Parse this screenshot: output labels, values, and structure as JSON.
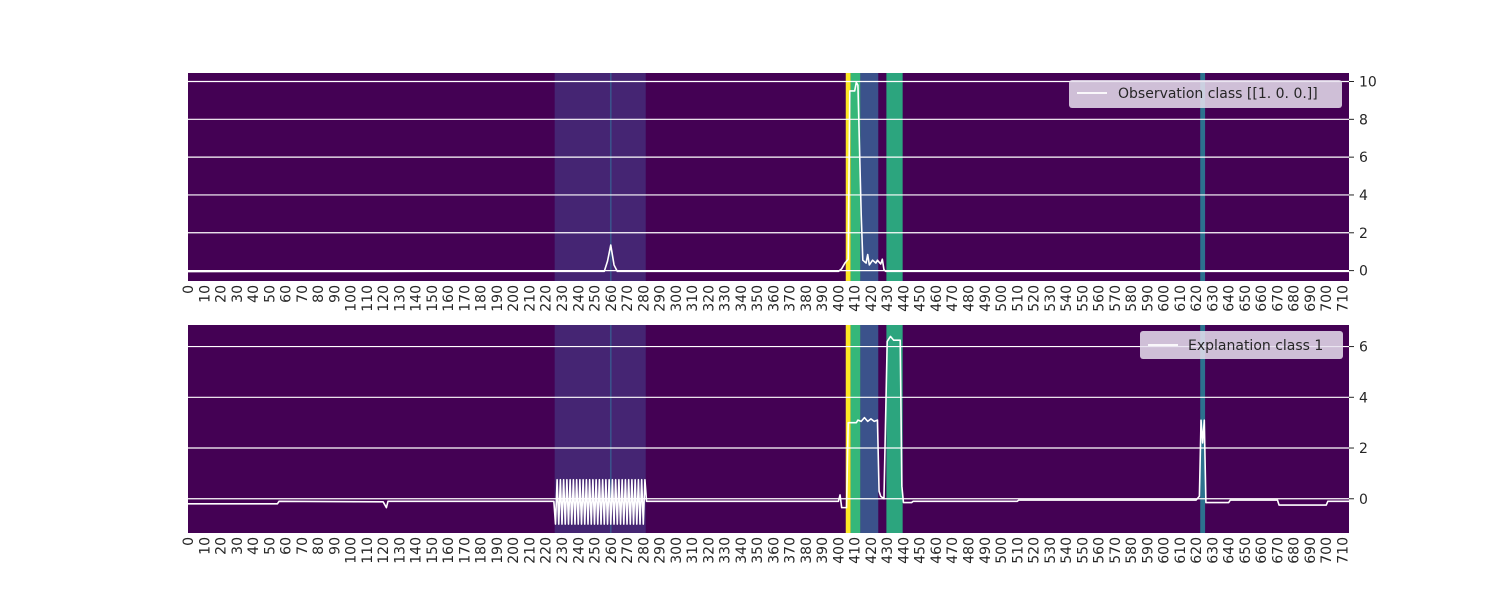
{
  "chart_data": [
    {
      "type": "line",
      "legend": {
        "label": "Observation class [[1. 0. 0.]]",
        "placement": "top-right"
      },
      "xlim": [
        0,
        714
      ],
      "ylim": [
        -0.55,
        10.45
      ],
      "yticks": [
        0,
        2,
        4,
        6,
        8,
        10
      ],
      "xticks": [
        0,
        10,
        20,
        30,
        40,
        50,
        60,
        70,
        80,
        90,
        100,
        110,
        120,
        130,
        140,
        150,
        160,
        170,
        180,
        190,
        200,
        210,
        220,
        230,
        240,
        250,
        260,
        270,
        280,
        290,
        300,
        310,
        320,
        330,
        340,
        350,
        360,
        370,
        380,
        390,
        400,
        410,
        420,
        430,
        440,
        450,
        460,
        470,
        480,
        490,
        500,
        510,
        520,
        530,
        540,
        550,
        560,
        570,
        580,
        590,
        600,
        610,
        620,
        630,
        640,
        650,
        660,
        670,
        680,
        690,
        700,
        710
      ],
      "grid": "horizontal",
      "line_color": "#ffffff",
      "heatmap_background": {
        "base_color": "#440154",
        "bands": [
          {
            "x": [
              225.5,
              281.5
            ],
            "color": "#46327e",
            "opacity": 0.75
          },
          {
            "x": [
              259.5,
              260.5
            ],
            "color": "#3b528b",
            "opacity": 1
          },
          {
            "x": [
              404.5,
              407.5
            ],
            "color": "#fde725",
            "opacity": 1
          },
          {
            "x": [
              407.5,
              413.5
            ],
            "color": "#35b779",
            "opacity": 1
          },
          {
            "x": [
              413.5,
              424.5
            ],
            "color": "#3b528b",
            "opacity": 1
          },
          {
            "x": [
              429.5,
              439.5
            ],
            "color": "#2ca57e",
            "opacity": 1
          },
          {
            "x": [
              622.5,
              625.5
            ],
            "color": "#2c728e",
            "opacity": 1
          }
        ]
      },
      "series": [
        {
          "name": "Observation class [[1. 0. 0.]]",
          "points": [
            [
              0,
              -0.05
            ],
            [
              150,
              -0.04
            ],
            [
              256,
              -0.04
            ],
            [
              258,
              0.5
            ],
            [
              260,
              1.35
            ],
            [
              262,
              0.3
            ],
            [
              264,
              -0.04
            ],
            [
              400,
              -0.04
            ],
            [
              402,
              0.1
            ],
            [
              404,
              0.4
            ],
            [
              406,
              0.6
            ],
            [
              407,
              9.5
            ],
            [
              410,
              9.5
            ],
            [
              411,
              9.95
            ],
            [
              412,
              9.8
            ],
            [
              414,
              3.0
            ],
            [
              415,
              0.55
            ],
            [
              417,
              0.4
            ],
            [
              418,
              0.85
            ],
            [
              419,
              0.3
            ],
            [
              421,
              0.55
            ],
            [
              423,
              0.4
            ],
            [
              424,
              0.55
            ],
            [
              426,
              0.35
            ],
            [
              427,
              0.6
            ],
            [
              428,
              0.05
            ],
            [
              429,
              -0.04
            ],
            [
              714,
              -0.04
            ]
          ]
        }
      ]
    },
    {
      "type": "line",
      "legend": {
        "label": "Explanation class 1",
        "placement": "top-right"
      },
      "xlim": [
        0,
        714
      ],
      "ylim": [
        -1.35,
        6.85
      ],
      "yticks": [
        0,
        2,
        4,
        6
      ],
      "xticks": [
        0,
        10,
        20,
        30,
        40,
        50,
        60,
        70,
        80,
        90,
        100,
        110,
        120,
        130,
        140,
        150,
        160,
        170,
        180,
        190,
        200,
        210,
        220,
        230,
        240,
        250,
        260,
        270,
        280,
        290,
        300,
        310,
        320,
        330,
        340,
        350,
        360,
        370,
        380,
        390,
        400,
        410,
        420,
        430,
        440,
        450,
        460,
        470,
        480,
        490,
        500,
        510,
        520,
        530,
        540,
        550,
        560,
        570,
        580,
        590,
        600,
        610,
        620,
        630,
        640,
        650,
        660,
        670,
        680,
        690,
        700,
        710
      ],
      "grid": "horizontal",
      "line_color": "#ffffff",
      "heatmap_background": {
        "base_color": "#440154",
        "bands": [
          {
            "x": [
              225.5,
              281.5
            ],
            "color": "#46327e",
            "opacity": 0.75
          },
          {
            "x": [
              259.5,
              260.5
            ],
            "color": "#3b528b",
            "opacity": 1
          },
          {
            "x": [
              404.5,
              407.5
            ],
            "color": "#fde725",
            "opacity": 1
          },
          {
            "x": [
              407.5,
              413.5
            ],
            "color": "#35b779",
            "opacity": 1
          },
          {
            "x": [
              413.5,
              424.5
            ],
            "color": "#3b528b",
            "opacity": 1
          },
          {
            "x": [
              429.5,
              439.5
            ],
            "color": "#2ca57e",
            "opacity": 1
          },
          {
            "x": [
              622.5,
              625.5
            ],
            "color": "#2c728e",
            "opacity": 1
          }
        ]
      },
      "series": [
        {
          "name": "Explanation class 1",
          "points": [
            [
              0,
              -0.2
            ],
            [
              55,
              -0.2
            ],
            [
              56,
              -0.1
            ],
            [
              120,
              -0.12
            ],
            [
              122,
              -0.35
            ],
            [
              123,
              -0.1
            ],
            [
              225,
              -0.1
            ],
            [
              226,
              -1.0
            ],
            [
              227,
              0.75
            ],
            [
              228,
              -1.0
            ],
            [
              229,
              0.75
            ],
            [
              230,
              -1.0
            ],
            [
              231,
              0.75
            ],
            [
              232,
              -1.0
            ],
            [
              233,
              0.75
            ],
            [
              234,
              -1.0
            ],
            [
              235,
              0.75
            ],
            [
              236,
              -1.0
            ],
            [
              237,
              0.75
            ],
            [
              238,
              -1.0
            ],
            [
              239,
              0.75
            ],
            [
              240,
              -1.0
            ],
            [
              241,
              0.75
            ],
            [
              242,
              -1.0
            ],
            [
              243,
              0.75
            ],
            [
              244,
              -1.0
            ],
            [
              245,
              0.75
            ],
            [
              246,
              -1.0
            ],
            [
              247,
              0.75
            ],
            [
              248,
              -1.0
            ],
            [
              249,
              0.75
            ],
            [
              250,
              -1.0
            ],
            [
              251,
              0.75
            ],
            [
              252,
              -1.0
            ],
            [
              253,
              0.75
            ],
            [
              254,
              -1.0
            ],
            [
              255,
              0.75
            ],
            [
              256,
              -1.0
            ],
            [
              257,
              0.75
            ],
            [
              258,
              -1.0
            ],
            [
              259,
              0.75
            ],
            [
              260,
              -1.0
            ],
            [
              261,
              0.75
            ],
            [
              262,
              -1.0
            ],
            [
              263,
              0.75
            ],
            [
              264,
              -1.0
            ],
            [
              265,
              0.75
            ],
            [
              266,
              -1.0
            ],
            [
              267,
              0.75
            ],
            [
              268,
              -1.0
            ],
            [
              269,
              0.75
            ],
            [
              270,
              -1.0
            ],
            [
              271,
              0.75
            ],
            [
              272,
              -1.0
            ],
            [
              273,
              0.75
            ],
            [
              274,
              -1.0
            ],
            [
              275,
              0.75
            ],
            [
              276,
              -1.0
            ],
            [
              277,
              0.75
            ],
            [
              278,
              -1.0
            ],
            [
              279,
              0.75
            ],
            [
              280,
              -1.0
            ],
            [
              281,
              0.75
            ],
            [
              282,
              -0.1
            ],
            [
              400,
              -0.1
            ],
            [
              401,
              0.15
            ],
            [
              402,
              -0.35
            ],
            [
              405,
              -0.35
            ],
            [
              406,
              3.0
            ],
            [
              411,
              3.0
            ],
            [
              412,
              3.1
            ],
            [
              414,
              3.05
            ],
            [
              416,
              3.2
            ],
            [
              418,
              3.05
            ],
            [
              420,
              3.15
            ],
            [
              422,
              3.05
            ],
            [
              424,
              3.1
            ],
            [
              425,
              0.3
            ],
            [
              426,
              0.1
            ],
            [
              428,
              0.0
            ],
            [
              430,
              6.2
            ],
            [
              432,
              6.4
            ],
            [
              434,
              6.25
            ],
            [
              438,
              6.25
            ],
            [
              439,
              0.5
            ],
            [
              440,
              -0.15
            ],
            [
              445,
              -0.15
            ],
            [
              446,
              -0.1
            ],
            [
              510,
              -0.1
            ],
            [
              511,
              -0.05
            ],
            [
              560,
              -0.05
            ],
            [
              620,
              -0.05
            ],
            [
              622,
              0.1
            ],
            [
              623,
              3.1
            ],
            [
              624,
              2.2
            ],
            [
              625,
              3.1
            ],
            [
              626,
              -0.15
            ],
            [
              640,
              -0.15
            ],
            [
              641,
              -0.05
            ],
            [
              670,
              -0.05
            ],
            [
              671,
              -0.25
            ],
            [
              700,
              -0.25
            ],
            [
              701,
              -0.1
            ],
            [
              714,
              -0.1
            ]
          ]
        }
      ]
    }
  ]
}
